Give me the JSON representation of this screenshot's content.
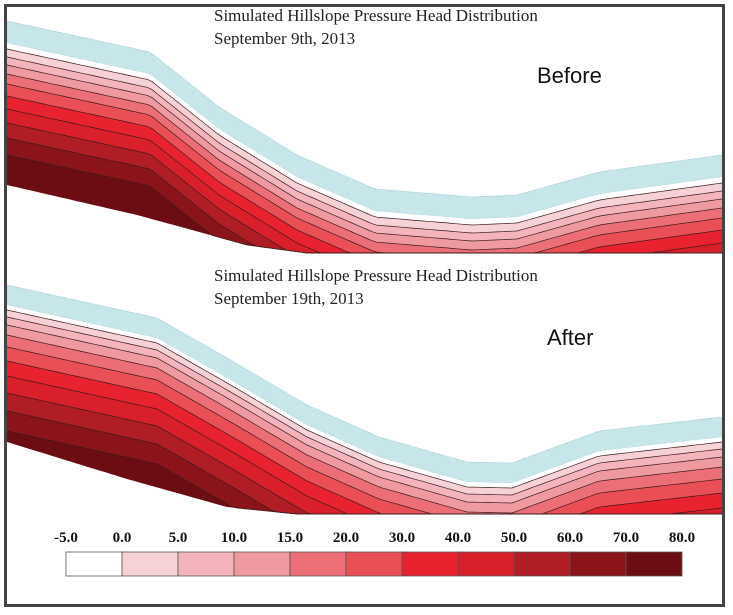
{
  "panels": [
    {
      "title_line1": "Simulated Hillslope Pressure Head Distribution",
      "title_line2": "September 9th, 2013",
      "label": "Before"
    },
    {
      "title_line1": "Simulated Hillslope Pressure Head Distribution",
      "title_line2": "September 19th, 2013",
      "label": "After"
    }
  ],
  "legend": {
    "ticks": [
      "-5.0",
      "0.0",
      "5.0",
      "10.0",
      "15.0",
      "20.0",
      "30.0",
      "40.0",
      "50.0",
      "60.0",
      "70.0",
      "80.0"
    ],
    "colors": [
      "#ffffff",
      "#f6d2d6",
      "#f3b5bb",
      "#ef9aa1",
      "#ec6f78",
      "#ea4f55",
      "#e92230",
      "#d81f2a",
      "#b01d24",
      "#8b141a",
      "#6b0d12"
    ]
  },
  "colors": {
    "surface_cap": "#c7e6ea",
    "frame": "#444444"
  }
}
